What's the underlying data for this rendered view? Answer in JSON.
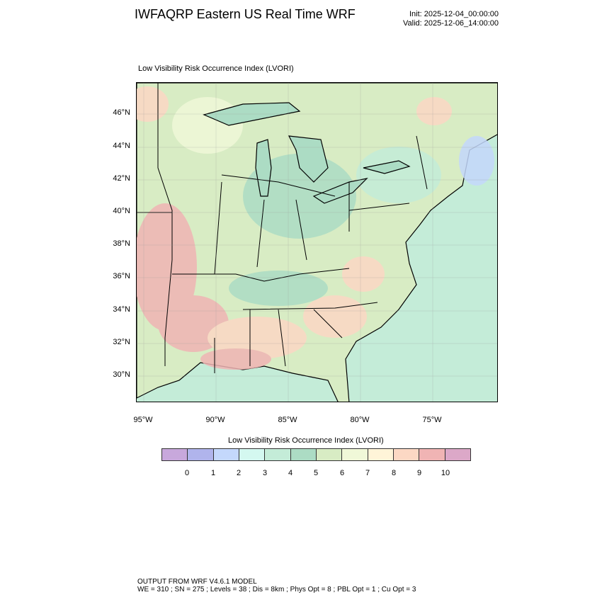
{
  "header": {
    "title": "IWFAQRP Eastern US Real Time WRF",
    "init": "Init: 2025-12-04_00:00:00",
    "valid": "Valid: 2025-12-06_14:00:00"
  },
  "plot": {
    "subtitle": "Low Visibility Risk Occurrence Index   (LVORI)",
    "lat_labels": [
      "46°N",
      "44°N",
      "42°N",
      "40°N",
      "38°N",
      "36°N",
      "34°N",
      "32°N",
      "30°N"
    ],
    "lon_labels": [
      "95°W",
      "90°W",
      "85°W",
      "80°W",
      "75°W"
    ]
  },
  "colorbar": {
    "title": "Low Visibility Risk Occurrence Index  (LVORI)",
    "labels": [
      "0",
      "1",
      "2",
      "3",
      "4",
      "5",
      "6",
      "7",
      "8",
      "9",
      "10"
    ],
    "colors": [
      "#c8a8dc",
      "#b0b4ec",
      "#c4d8fc",
      "#d4f8f0",
      "#c4ecd8",
      "#acdcc4",
      "#d8ecc4",
      "#f0f8d8",
      "#fff4d8",
      "#fcd8c4",
      "#f0b4b4",
      "#dca8c8"
    ]
  },
  "footer": {
    "line1": "OUTPUT FROM WRF V4.6.1 MODEL",
    "line2": "WE = 310 ; SN = 275 ; Levels = 38 ; Dis = 8km ; Phys Opt = 8 ; PBL Opt = 1 ; Cu Opt = 3"
  }
}
